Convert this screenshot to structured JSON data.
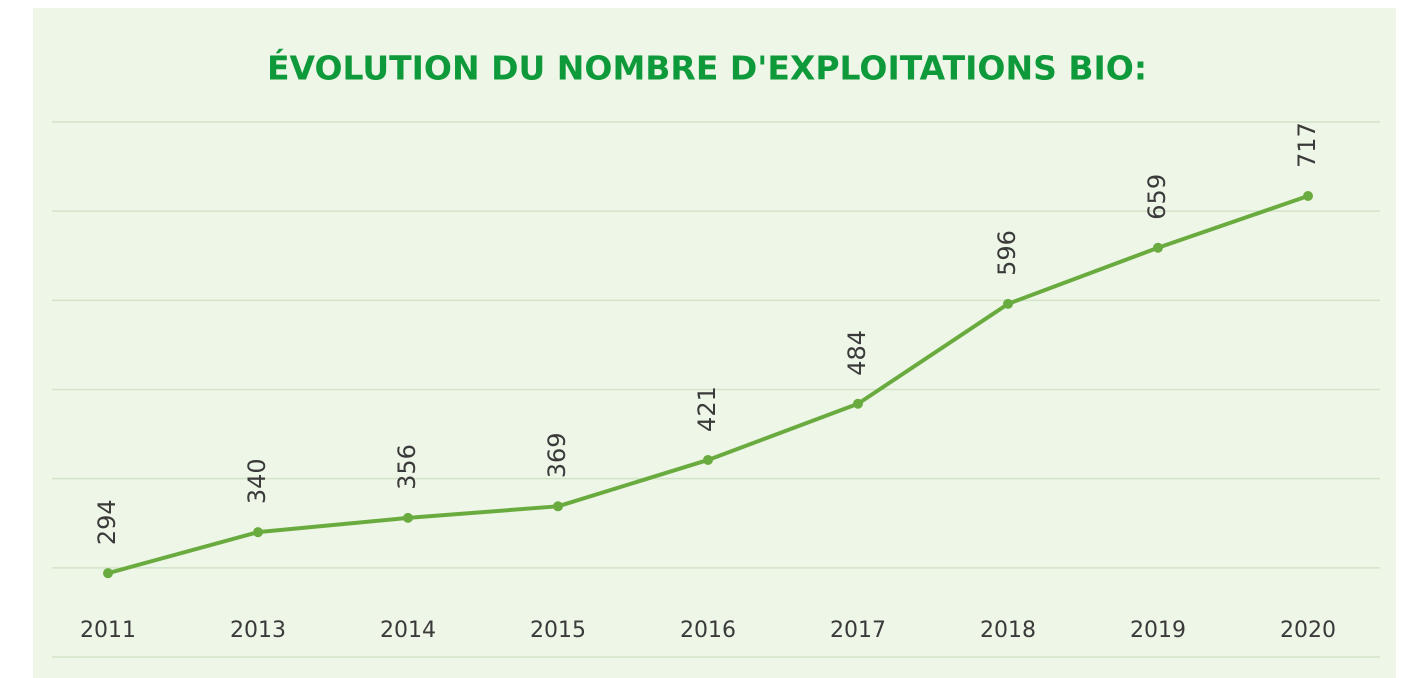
{
  "chart_data": {
    "type": "line",
    "title": "ÉVOLUTION DU NOMBRE D'EXPLOITATIONS BIO:",
    "categories": [
      "2011",
      "2013",
      "2014",
      "2015",
      "2016",
      "2017",
      "2018",
      "2019",
      "2020"
    ],
    "values": [
      294,
      340,
      356,
      369,
      421,
      484,
      596,
      659,
      717
    ],
    "color": "#6aab3f",
    "ylim": [
      200,
      800
    ],
    "yticks": [
      200,
      300,
      400,
      500,
      600,
      700,
      800
    ],
    "grid": true
  }
}
